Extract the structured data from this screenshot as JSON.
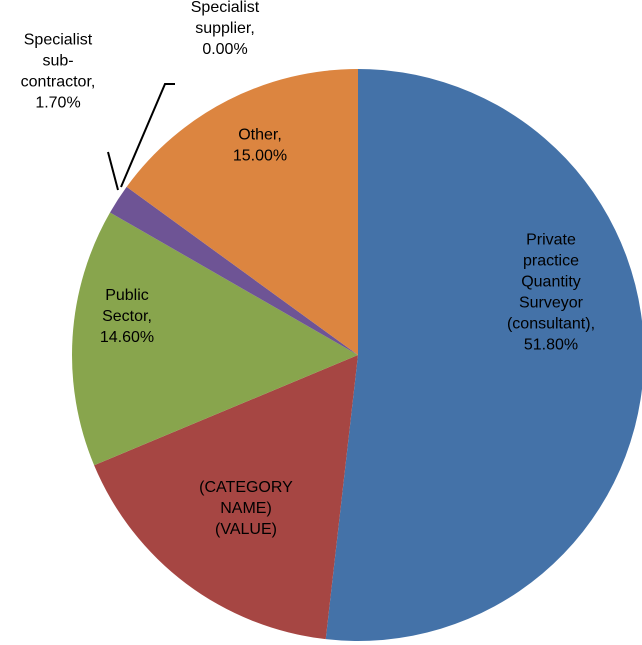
{
  "chart_data": {
    "type": "pie",
    "title": "",
    "legend": "none",
    "slices": [
      {
        "label_lines": [
          "Private",
          "practice",
          "Quantity",
          "Surveyor",
          "(consultant),",
          "51.80%"
        ],
        "value": 51.8,
        "color": "#4472a8"
      },
      {
        "label_lines": [
          "(CATEGORY",
          "NAME)",
          "(VALUE)"
        ],
        "value": 16.9,
        "color": "#a64643"
      },
      {
        "label_lines": [
          "Public",
          "Sector,",
          "14.60%"
        ],
        "value": 14.6,
        "color": "#88a54d"
      },
      {
        "label_lines": [
          "Specialist",
          "sub-",
          "contractor,",
          "1.70%"
        ],
        "value": 1.7,
        "color": "#6e5495"
      },
      {
        "label_lines": [
          "Specialist",
          "supplier,",
          "0.00%"
        ],
        "value": 0.0,
        "color": "#3d96b0"
      },
      {
        "label_lines": [
          "Other,",
          "15.00%"
        ],
        "value": 15.0,
        "color": "#dc8540"
      }
    ]
  }
}
